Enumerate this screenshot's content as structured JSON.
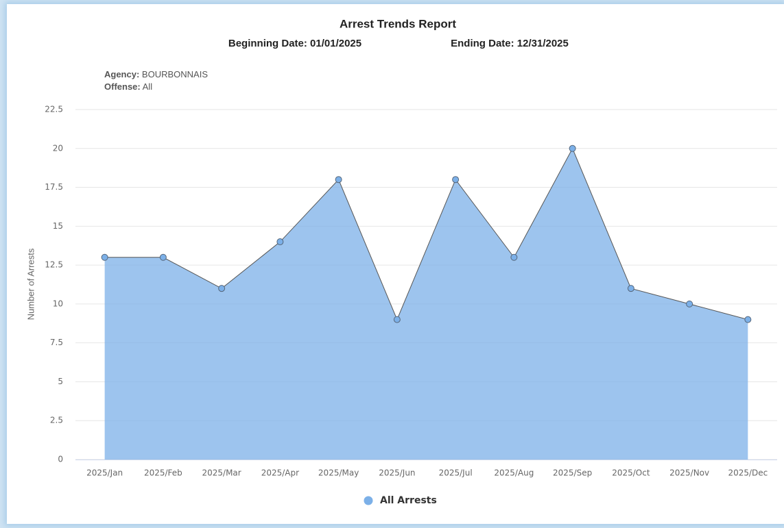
{
  "chart_data": {
    "type": "area",
    "title": "Arrest Trends Report",
    "begin_date": "Beginning Date: 01/01/2025",
    "end_date": "Ending Date: 12/31/2025",
    "filters": [
      {
        "label": "Agency:",
        "value": "BOURBONNAIS"
      },
      {
        "label": "Offense:",
        "value": "All"
      }
    ],
    "y_label": "Number of Arrests",
    "categories": [
      "2025/Jan",
      "2025/Feb",
      "2025/Mar",
      "2025/Apr",
      "2025/May",
      "2025/Jun",
      "2025/Jul",
      "2025/Aug",
      "2025/Sep",
      "2025/Oct",
      "2025/Nov",
      "2025/Dec"
    ],
    "series": [
      {
        "name": "All Arrests",
        "color": "#7cb0e8",
        "values": [
          13,
          13,
          11,
          14,
          18,
          9,
          18,
          13,
          20,
          11,
          10,
          9
        ]
      }
    ],
    "ylim": [
      0,
      22.5
    ],
    "yticks": [
      0,
      2.5,
      5,
      7.5,
      10,
      12.5,
      15,
      17.5,
      20,
      22.5
    ],
    "grid": true
  }
}
